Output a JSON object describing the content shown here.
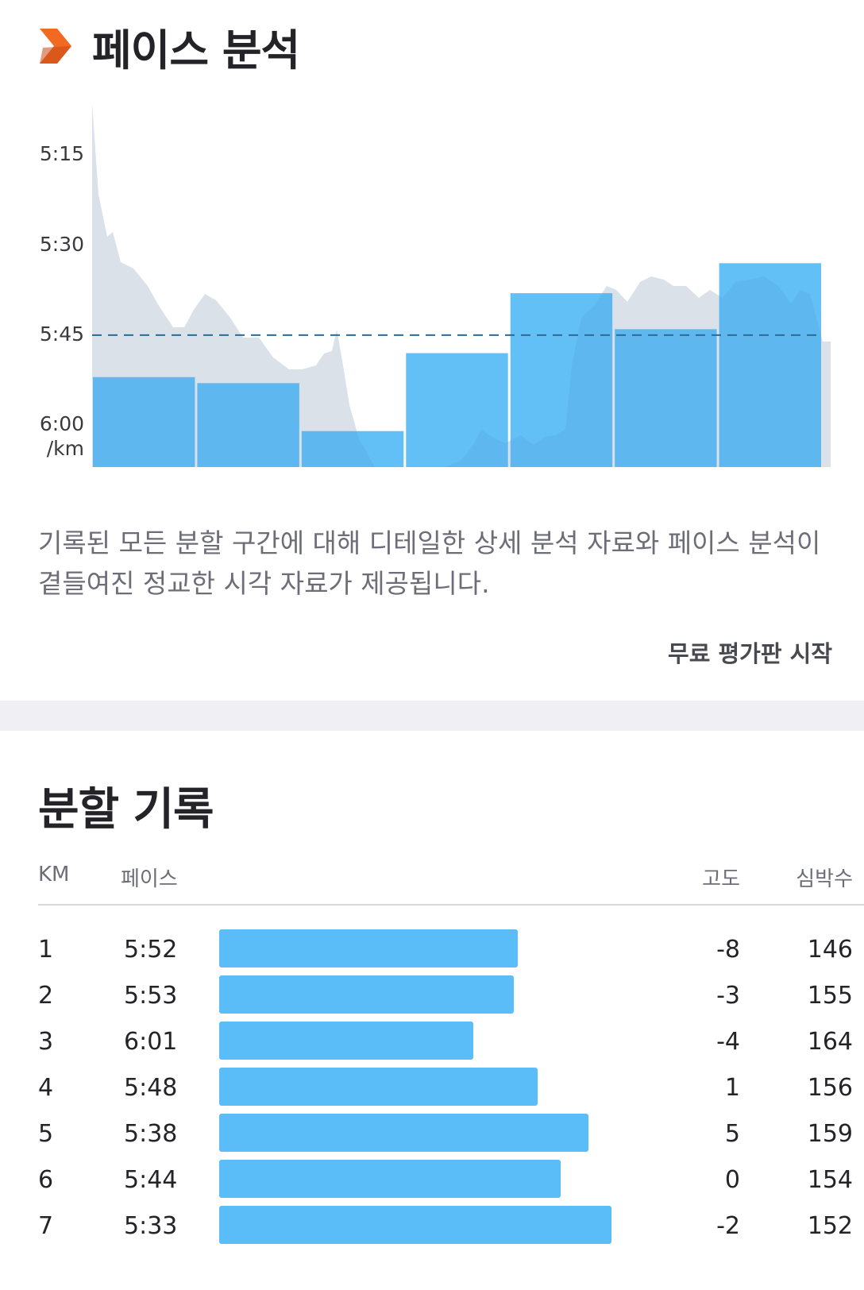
{
  "pace_analysis": {
    "title": "페이스 분석",
    "icon": "chevron-right-icon",
    "accent_color": "#f26a21",
    "description": "기록된 모든 분할 구간에 대해 디테일한 상세 분석 자료와 페이스 분석이 곁들여진 정교한 시각 자료가 제공됩니다.",
    "cta_label": "무료 평가판 시작"
  },
  "chart_data": {
    "type": "bar",
    "y_ticks": [
      "5:15",
      "5:30",
      "5:45",
      "6:00"
    ],
    "y_unit": "/km",
    "categories": [
      "1",
      "2",
      "3",
      "4",
      "5",
      "6",
      "7"
    ],
    "values_seconds": [
      352,
      353,
      361,
      348,
      338,
      344,
      333
    ],
    "values_label": [
      "5:52",
      "5:53",
      "6:01",
      "5:48",
      "5:38",
      "5:44",
      "5:33"
    ],
    "average_line_seconds": 345,
    "ylim_seconds": [
      305,
      367
    ],
    "bar_color": "#5bbdf7",
    "average_line_color": "#2b6c94",
    "background_area_color": "#ececf0",
    "grid": false
  },
  "splits": {
    "title": "분할 기록",
    "columns": {
      "km": "KM",
      "pace": "페이스",
      "elevation": "고도",
      "heart_rate": "심박수"
    },
    "bar_color": "#5bbdf7",
    "rows": [
      {
        "km": "1",
        "pace": "5:52",
        "pace_fraction": 0.735,
        "elevation": "-8",
        "heart_rate": "146"
      },
      {
        "km": "2",
        "pace": "5:53",
        "pace_fraction": 0.725,
        "elevation": "-3",
        "heart_rate": "155"
      },
      {
        "km": "3",
        "pace": "6:01",
        "pace_fraction": 0.625,
        "elevation": "-4",
        "heart_rate": "164"
      },
      {
        "km": "4",
        "pace": "5:48",
        "pace_fraction": 0.783,
        "elevation": "1",
        "heart_rate": "156"
      },
      {
        "km": "5",
        "pace": "5:38",
        "pace_fraction": 0.908,
        "elevation": "5",
        "heart_rate": "159"
      },
      {
        "km": "6",
        "pace": "5:44",
        "pace_fraction": 0.84,
        "elevation": "0",
        "heart_rate": "154"
      },
      {
        "km": "7",
        "pace": "5:33",
        "pace_fraction": 0.965,
        "elevation": "-2",
        "heart_rate": "152"
      }
    ]
  }
}
